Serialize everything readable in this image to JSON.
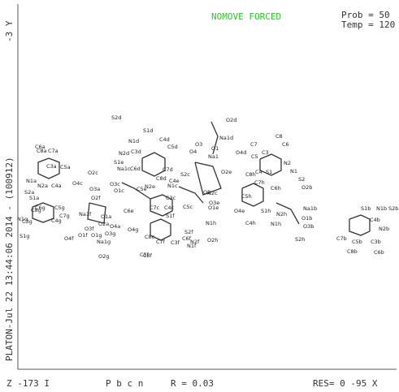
{
  "header": {
    "mode": "NOMOVE FORCED",
    "prob": "Prob = 50",
    "temp": "Temp = 120"
  },
  "side": {
    "axis": "-3 Y",
    "stamp": "PLATON-Jul 22 13:44:06 2014 - (100912)"
  },
  "footer": {
    "z": "Z -173 I",
    "space_group": "P b c n",
    "r": "R = 0.03",
    "res": "RES= 0 -95 X"
  },
  "atoms": [
    "S2d",
    "S1d",
    "N1d",
    "C4d",
    "C5d",
    "N2d",
    "C3d",
    "S1e",
    "Na1c",
    "C6d",
    "C7d",
    "O2c",
    "C8d",
    "O3c",
    "O1c",
    "O4c",
    "O3a",
    "O2f",
    "C4e",
    "N1c",
    "C5e",
    "N2e",
    "S2c",
    "C6e",
    "C3c",
    "C4c",
    "N2c",
    "O2d",
    "Na1d",
    "O3",
    "O1",
    "O4",
    "Na1",
    "O4d",
    "O2e",
    "O2",
    "C3",
    "C8",
    "C6",
    "C7",
    "C5",
    "C4",
    "S1",
    "N2",
    "N1",
    "C8h",
    "C7h",
    "C6h",
    "S2",
    "O2b",
    "C5h",
    "C4h",
    "N2h",
    "S1h",
    "N1h",
    "Na1b",
    "O1b",
    "O3b",
    "S2h",
    "O1e",
    "O3e",
    "O4e",
    "N1h",
    "S2f",
    "O2h",
    "C5c",
    "C7c",
    "C8c",
    "S1f",
    "N1f",
    "C6f",
    "N2f",
    "C3f",
    "C7f",
    "C8f",
    "O1a",
    "O2a",
    "O4a",
    "Na1f",
    "O3f",
    "O1f",
    "O3g",
    "O1g",
    "O4f",
    "O4g",
    "Na1g",
    "O2g",
    "C5f",
    "C6a",
    "C7a",
    "C8a",
    "C3a",
    "C5a",
    "N1a",
    "N2a",
    "C4a",
    "S2a",
    "S1a",
    "C6g",
    "C3g",
    "C8g",
    "C5g",
    "C7g",
    "N1g",
    "C4g",
    "S1g",
    "S1b",
    "N1b",
    "S2b",
    "C4b",
    "N2b",
    "C7b",
    "C5b",
    "C3b",
    "C8b",
    "C6b"
  ]
}
